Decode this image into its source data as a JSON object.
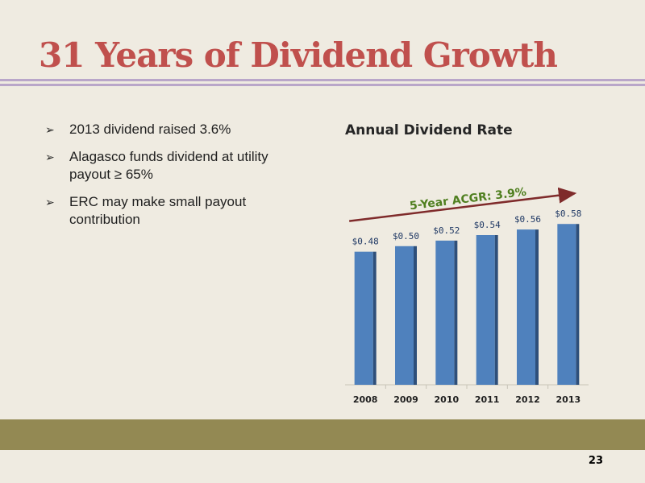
{
  "slide": {
    "title": "31 Years of Dividend Growth",
    "page_number": "23"
  },
  "bullets": [
    "2013 dividend raised 3.6%",
    "Alagasco funds dividend at utility payout ≥ 65%",
    "ERC may make small payout contribution"
  ],
  "colors": {
    "title": "#c0504d",
    "bar": "#4f81bd",
    "bar_shadow": "#2e4f7a",
    "trend_arrow": "#7f2b2b",
    "annotation": "#4f7f1f",
    "footer_band": "#938953"
  },
  "chart_data": {
    "type": "bar",
    "title": "Annual Dividend Rate",
    "categories": [
      "2008",
      "2009",
      "2010",
      "2011",
      "2012",
      "2013"
    ],
    "values": [
      0.48,
      0.5,
      0.52,
      0.54,
      0.56,
      0.58
    ],
    "data_labels": [
      "$0.48",
      "$0.50",
      "$0.52",
      "$0.54",
      "$0.56",
      "$0.58"
    ],
    "ylim": [
      0,
      0.72
    ],
    "xlabel": "",
    "ylabel": "",
    "grid": false,
    "annotation": "5-Year ACGR: 3.9%"
  }
}
